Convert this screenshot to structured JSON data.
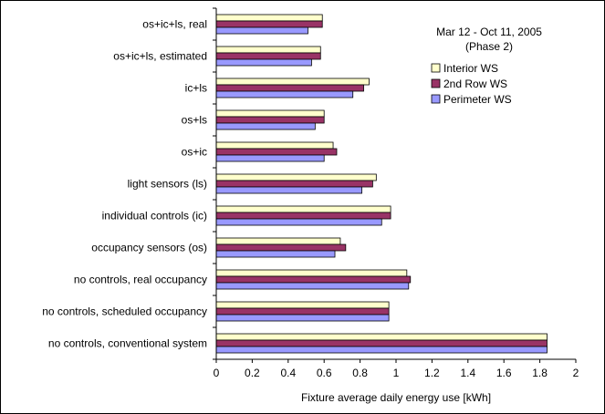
{
  "chart_data": {
    "type": "bar",
    "orientation": "horizontal",
    "categories": [
      "os+ic+ls, real",
      "os+ic+ls, estimated",
      "ic+ls",
      "os+ls",
      "os+ic",
      "light sensors (ls)",
      "individual controls (ic)",
      "occupancy sensors (os)",
      "no controls, real occupancy",
      "no controls, scheduled occupancy",
      "no controls, conventional system"
    ],
    "series": [
      {
        "name": "Interior WS",
        "color": "#ffffcc",
        "values": [
          0.59,
          0.58,
          0.85,
          0.6,
          0.65,
          0.89,
          0.97,
          0.69,
          1.06,
          0.96,
          1.84
        ]
      },
      {
        "name": "2nd Row WS",
        "color": "#993366",
        "values": [
          0.59,
          0.58,
          0.82,
          0.6,
          0.67,
          0.87,
          0.97,
          0.72,
          1.08,
          0.96,
          1.84
        ]
      },
      {
        "name": "Perimeter WS",
        "color": "#9999ff",
        "values": [
          0.51,
          0.53,
          0.76,
          0.55,
          0.6,
          0.81,
          0.92,
          0.66,
          1.07,
          0.96,
          1.84
        ]
      }
    ],
    "xlabel": "Fixture average daily energy use [kWh]",
    "xlim": [
      0,
      2
    ],
    "xticks": [
      "0",
      "0.2",
      "0.4",
      "0.6",
      "0.8",
      "1",
      "1.2",
      "1.4",
      "1.6",
      "1.8",
      "2"
    ],
    "grid": false,
    "legend_position": "right",
    "annotation": [
      "Mar 12 - Oct 11, 2005",
      "(Phase 2)"
    ]
  }
}
